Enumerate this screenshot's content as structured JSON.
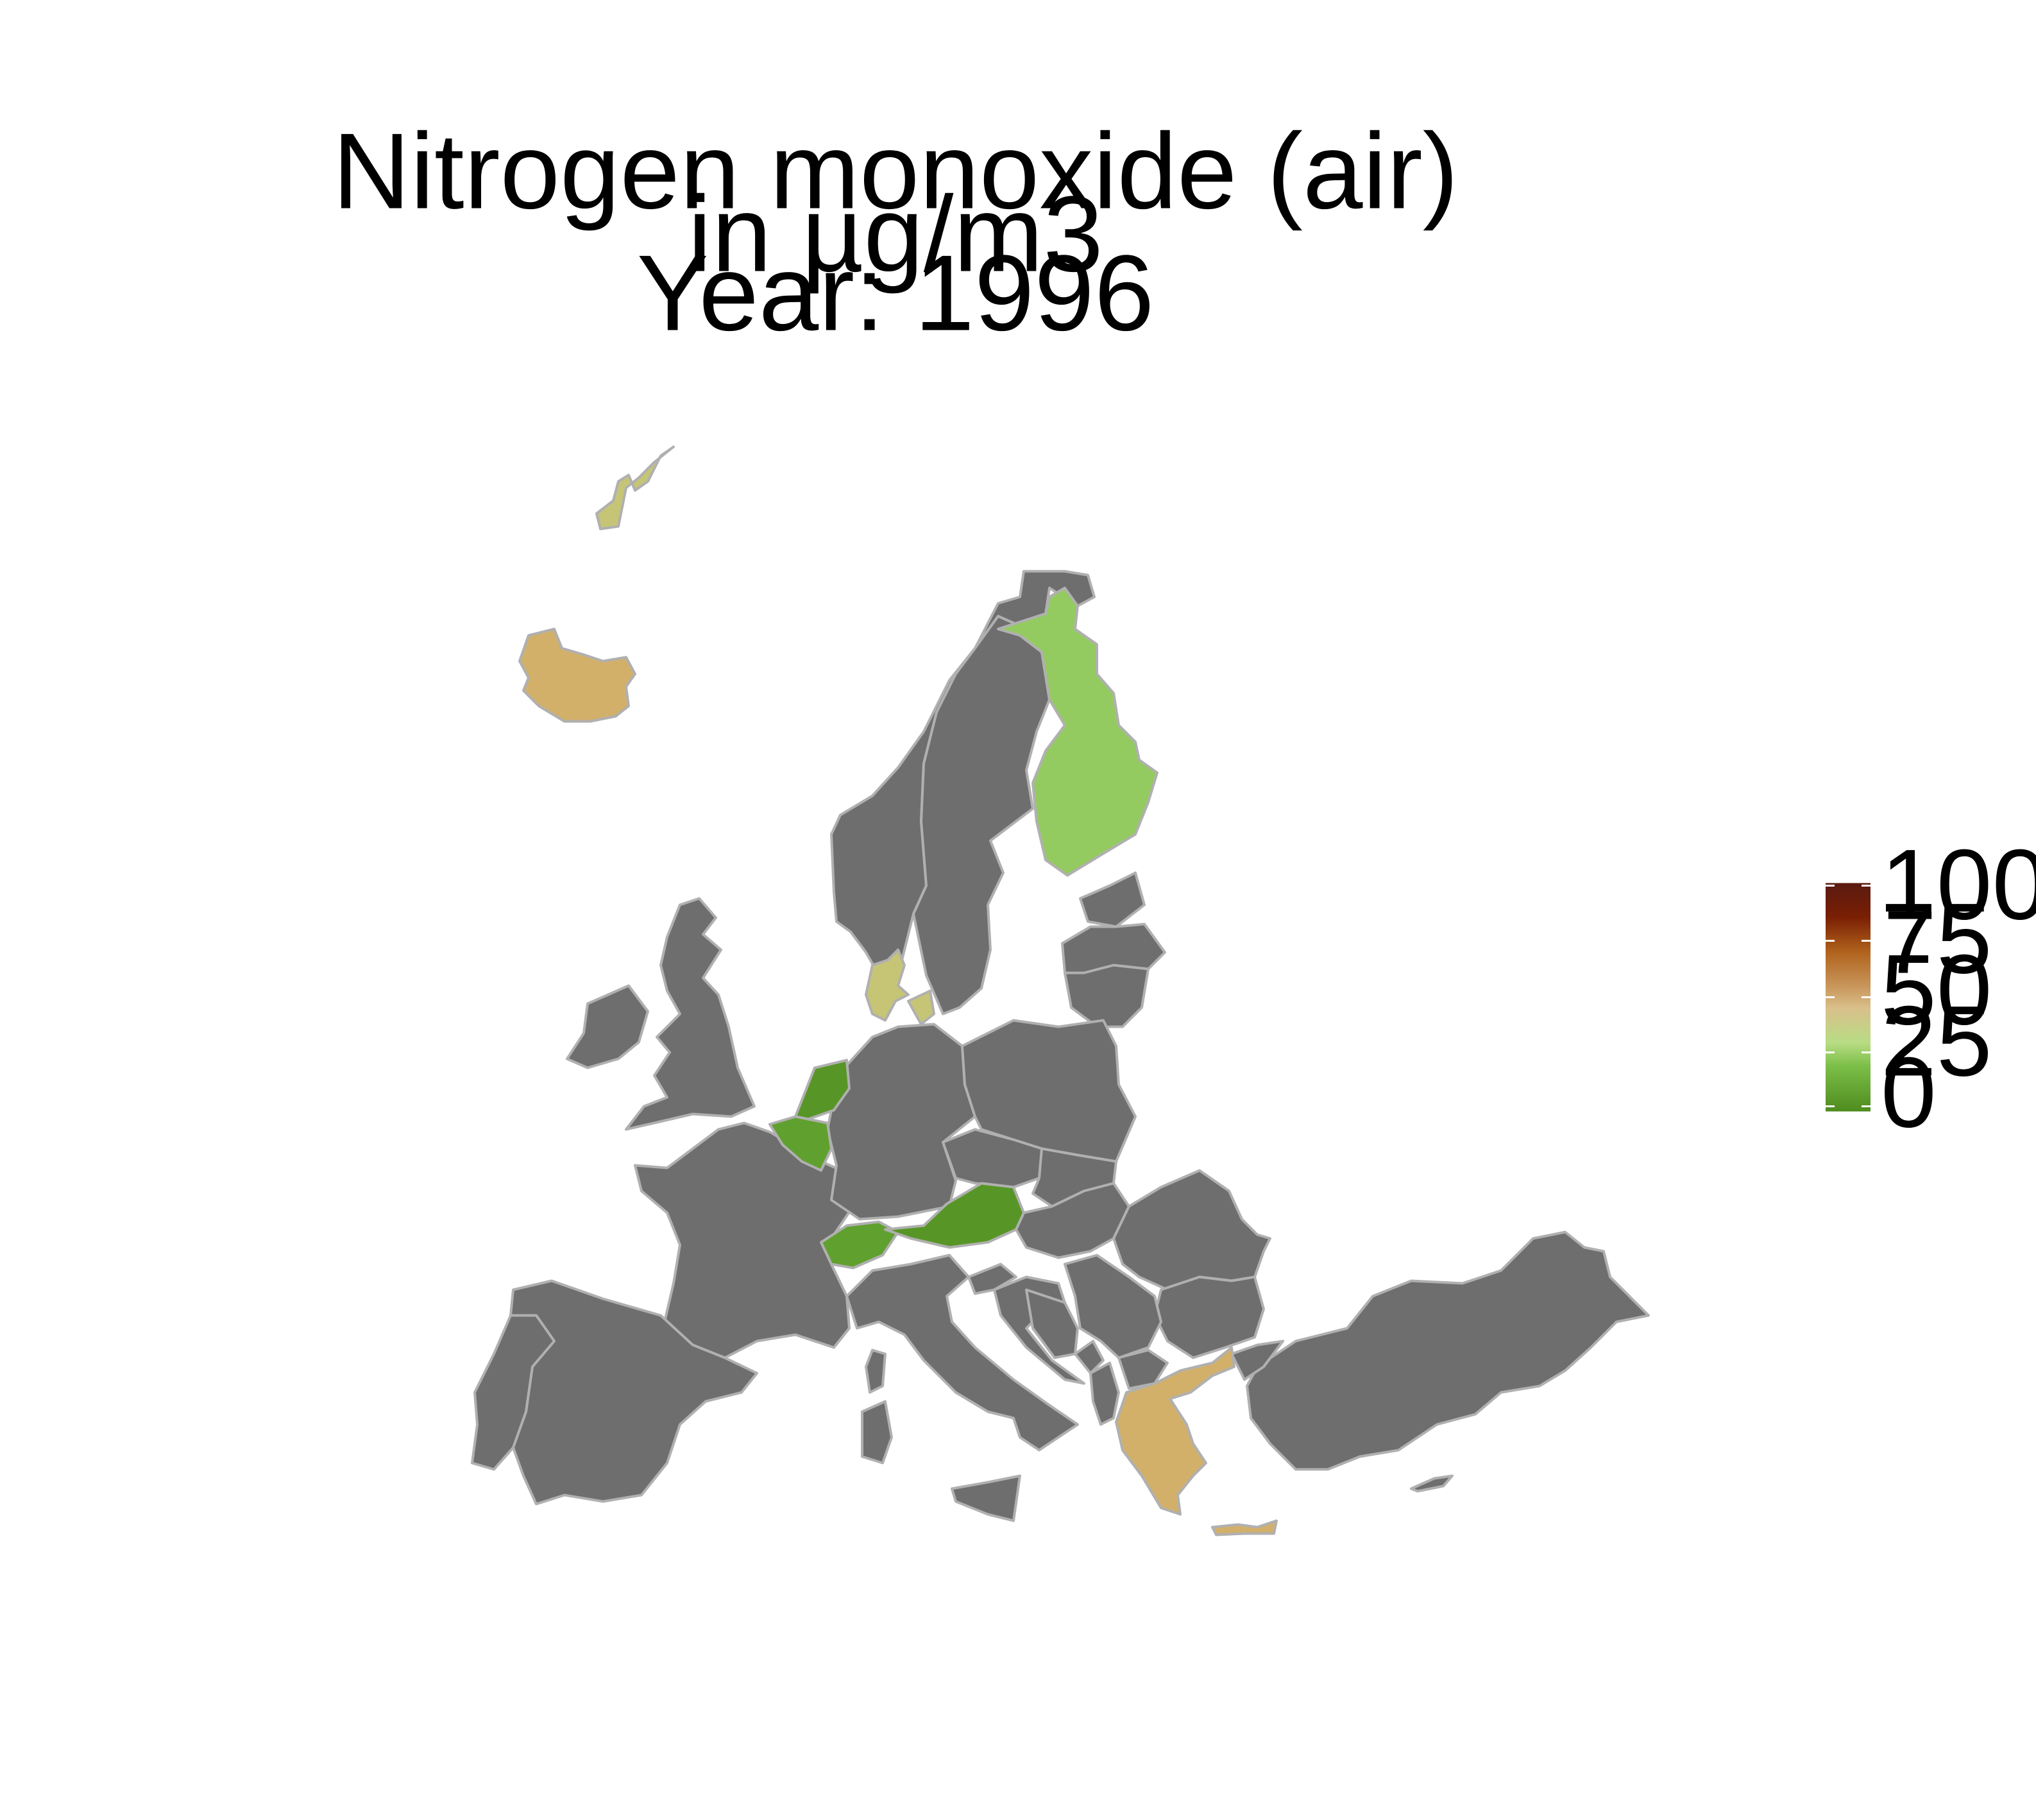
{
  "title": {
    "line1": "Nitrogen monoxide (air)",
    "line2": "in µg/m3",
    "line3": "Year: 1996"
  },
  "colors": {
    "no_data": "#6e6e6e",
    "border": "#b0b0b0",
    "scale_low": "#4e8c1e",
    "scale_mid": "#d2b06a",
    "scale_high": "#5a1a10"
  },
  "legend": {
    "title": "",
    "min": 0,
    "max": 100,
    "tick_labels": [
      "100",
      "75",
      "50",
      "25",
      "0"
    ]
  },
  "regions": {
    "iceland": {
      "name": "Iceland",
      "value": 45
    },
    "svalbard": {
      "name": "Svalbard",
      "value": 38
    },
    "finland": {
      "name": "Finland",
      "value": 24
    },
    "denmark": {
      "name": "Denmark",
      "value": 38
    },
    "netherlands": {
      "name": "Netherlands",
      "value": 4
    },
    "belgium": {
      "name": "Belgium",
      "value": 8
    },
    "switzerland": {
      "name": "Switzerland",
      "value": 8
    },
    "austria": {
      "name": "Austria",
      "value": 4
    },
    "greece": {
      "name": "Greece",
      "value": 45
    }
  }
}
